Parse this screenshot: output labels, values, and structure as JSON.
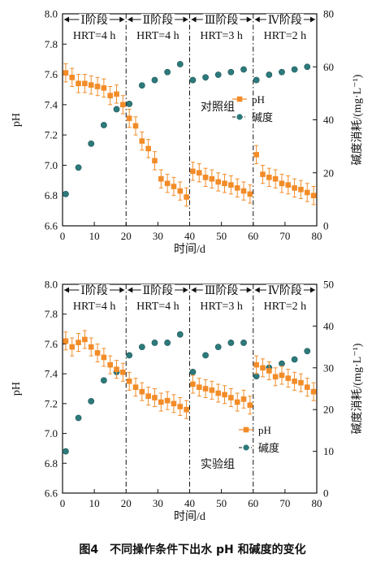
{
  "caption": "图4　不同操作条件下出水 pH 和碱度的变化",
  "colors": {
    "ph": "#f28c28",
    "alk": "#2c7a7b",
    "line": "#111111"
  },
  "chart_data": [
    {
      "type": "scatter",
      "annotation": "对照组",
      "xlabel": "时间/d",
      "ylabel_left": "pH",
      "ylabel_right": "碱度消耗/(mg·L⁻¹)",
      "xlim": [
        0,
        80
      ],
      "xticks": [
        0,
        10,
        20,
        30,
        40,
        50,
        60,
        70,
        80
      ],
      "ylim_left": [
        6.6,
        8.0
      ],
      "yticks_left": [
        "6.6",
        "6.8",
        "7.0",
        "7.2",
        "7.4",
        "7.6",
        "7.8",
        "8.0"
      ],
      "ylim_right": [
        0,
        80
      ],
      "yticks_right": [
        "0",
        "20",
        "40",
        "60",
        "80"
      ],
      "phases": [
        {
          "name": "Ⅰ阶段",
          "hrt": "HRT=4 h",
          "range": [
            0,
            20
          ]
        },
        {
          "name": "Ⅱ阶段",
          "hrt": "HRT=4 h",
          "range": [
            20,
            40
          ]
        },
        {
          "name": "Ⅲ阶段",
          "hrt": "HRT=3 h",
          "range": [
            40,
            60
          ]
        },
        {
          "name": "Ⅳ阶段",
          "hrt": "HRT=2 h",
          "range": [
            60,
            80
          ]
        }
      ],
      "series": [
        {
          "name": "pH",
          "axis": "left",
          "marker": "square",
          "x": [
            1,
            3,
            5,
            7,
            9,
            11,
            13,
            15,
            17,
            19,
            21,
            23,
            25,
            27,
            29,
            31,
            33,
            35,
            37,
            39,
            41,
            43,
            45,
            47,
            49,
            51,
            53,
            55,
            57,
            59,
            61,
            63,
            65,
            67,
            69,
            71,
            73,
            75,
            77,
            79
          ],
          "values": [
            7.61,
            7.58,
            7.54,
            7.54,
            7.53,
            7.52,
            7.51,
            7.46,
            7.47,
            7.4,
            7.31,
            7.26,
            7.16,
            7.11,
            7.03,
            6.91,
            6.88,
            6.86,
            6.83,
            6.79,
            6.96,
            6.95,
            6.92,
            6.91,
            6.89,
            6.88,
            6.87,
            6.85,
            6.83,
            6.81,
            7.07,
            6.94,
            6.92,
            6.91,
            6.88,
            6.87,
            6.85,
            6.84,
            6.82,
            6.8
          ],
          "error": 0.06
        },
        {
          "name": "碱度",
          "axis": "right",
          "marker": "circle",
          "x": [
            1,
            5,
            9,
            13,
            17,
            21,
            25,
            29,
            33,
            37,
            41,
            45,
            49,
            53,
            57,
            61,
            65,
            69,
            73,
            77
          ],
          "values": [
            12,
            22,
            31,
            38,
            44,
            46,
            53,
            55,
            58,
            61,
            55,
            56,
            57,
            58,
            59,
            55,
            57,
            58,
            59,
            60
          ]
        }
      ]
    },
    {
      "type": "scatter",
      "annotation": "实验组",
      "xlabel": "时间/d",
      "ylabel_left": "pH",
      "ylabel_right": "碱度消耗/(mg·L⁻¹)",
      "xlim": [
        0,
        80
      ],
      "xticks": [
        0,
        10,
        20,
        30,
        40,
        50,
        60,
        70,
        80
      ],
      "ylim_left": [
        6.6,
        8.0
      ],
      "yticks_left": [
        "6.6",
        "6.8",
        "7.0",
        "7.2",
        "7.4",
        "7.6",
        "7.8",
        "8.0"
      ],
      "ylim_right": [
        0,
        50
      ],
      "yticks_right": [
        "0",
        "10",
        "20",
        "30",
        "40",
        "50"
      ],
      "phases": [
        {
          "name": "Ⅰ阶段",
          "hrt": "HRT=4 h",
          "range": [
            0,
            20
          ]
        },
        {
          "name": "Ⅱ阶段",
          "hrt": "HRT=4 h",
          "range": [
            20,
            40
          ]
        },
        {
          "name": "Ⅲ阶段",
          "hrt": "HRT=3 h",
          "range": [
            40,
            60
          ]
        },
        {
          "name": "Ⅳ阶段",
          "hrt": "HRT=2 h",
          "range": [
            60,
            80
          ]
        }
      ],
      "series": [
        {
          "name": "pH",
          "axis": "left",
          "marker": "square",
          "x": [
            1,
            3,
            5,
            7,
            9,
            11,
            13,
            15,
            17,
            19,
            21,
            23,
            25,
            27,
            29,
            31,
            33,
            35,
            37,
            39,
            41,
            43,
            45,
            47,
            49,
            51,
            53,
            55,
            57,
            59,
            61,
            63,
            65,
            67,
            69,
            71,
            73,
            75,
            77,
            79
          ],
          "values": [
            7.62,
            7.58,
            7.61,
            7.63,
            7.58,
            7.54,
            7.51,
            7.46,
            7.43,
            7.41,
            7.35,
            7.31,
            7.28,
            7.25,
            7.24,
            7.21,
            7.22,
            7.2,
            7.18,
            7.16,
            7.33,
            7.31,
            7.3,
            7.29,
            7.27,
            7.26,
            7.24,
            7.21,
            7.23,
            7.19,
            7.46,
            7.44,
            7.42,
            7.38,
            7.39,
            7.37,
            7.35,
            7.34,
            7.31,
            7.28
          ],
          "error": 0.06
        },
        {
          "name": "碱度",
          "axis": "right",
          "marker": "circle",
          "x": [
            1,
            5,
            9,
            13,
            17,
            21,
            25,
            29,
            33,
            37,
            41,
            45,
            49,
            53,
            57,
            61,
            65,
            69,
            73,
            77
          ],
          "values": [
            10,
            18,
            22,
            27,
            29,
            33,
            35,
            36,
            36,
            38,
            29,
            33,
            35,
            36,
            36,
            28,
            30,
            31,
            32,
            34
          ]
        }
      ]
    }
  ]
}
